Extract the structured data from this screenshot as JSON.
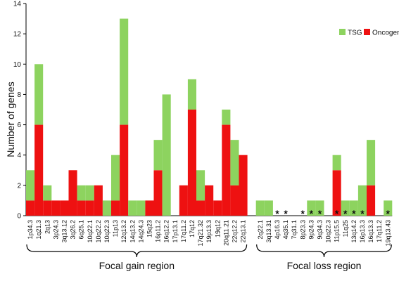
{
  "chart_data": {
    "type": "bar",
    "stacked": true,
    "ylabel": "Number of genes",
    "ylim": [
      0,
      14
    ],
    "yticks": [
      0,
      2,
      4,
      6,
      8,
      10,
      12,
      14
    ],
    "grid": false,
    "legend_position": "top-right",
    "colors": {
      "TSG": "#8dd35f",
      "Oncogene": "#ee1111"
    },
    "series": [
      {
        "name": "Oncogene",
        "color": "#ee1111",
        "values": [
          1,
          6,
          1,
          1,
          1,
          3,
          1,
          1,
          2,
          0,
          1,
          6,
          0,
          0,
          1,
          3,
          0,
          0,
          2,
          7,
          1,
          2,
          1,
          6,
          2,
          4,
          0,
          0,
          0,
          0,
          0,
          0,
          0,
          0,
          0,
          3,
          0,
          0,
          0,
          2,
          0,
          0
        ]
      },
      {
        "name": "TSG",
        "color": "#8dd35f",
        "values": [
          2,
          4,
          1,
          0,
          0,
          0,
          1,
          1,
          0,
          1,
          3,
          7,
          1,
          1,
          0,
          2,
          8,
          0,
          0,
          2,
          2,
          0,
          0,
          1,
          3,
          0,
          1,
          1,
          0,
          0,
          0,
          0,
          1,
          1,
          0,
          1,
          1,
          1,
          2,
          3,
          0,
          1
        ]
      }
    ],
    "categories": [
      "1p34.3",
      "1q21.3",
      "2q13",
      "3p24.3",
      "3q13.12",
      "3q26.2",
      "6q25.1",
      "10q22.1",
      "10q22.2",
      "10q22.3",
      "11p13",
      "12q13.2",
      "14q13.2",
      "14q24.3",
      "15q23",
      "16p11.2",
      "16q12.2",
      "17p13.1",
      "17q11.2",
      "17q12",
      "17q21.32",
      "19p13.3",
      "19q12",
      "20q11.21",
      "22q12.2",
      "22q13.1",
      "2q22.1",
      "3q13.31",
      "4p16.3",
      "4q35.1",
      "7q31.1",
      "8p23.3",
      "9p24.3",
      "9q34.3",
      "10q22.3",
      "11p15.5",
      "11q25",
      "13q14.2",
      "16p13.3",
      "16q13.3",
      "17q11.2",
      "19q13.43"
    ],
    "starred": [
      "4p16.3",
      "4q35.1",
      "8p23.3",
      "9p24.3",
      "9q34.3",
      "11p15.5",
      "11q25",
      "13q14.2",
      "16p13.3",
      "19q13.43"
    ],
    "groups": [
      {
        "label": "Focal gain region",
        "from": 0,
        "to": 25
      },
      {
        "label": "Focal loss region",
        "from": 26,
        "to": 41
      }
    ]
  }
}
